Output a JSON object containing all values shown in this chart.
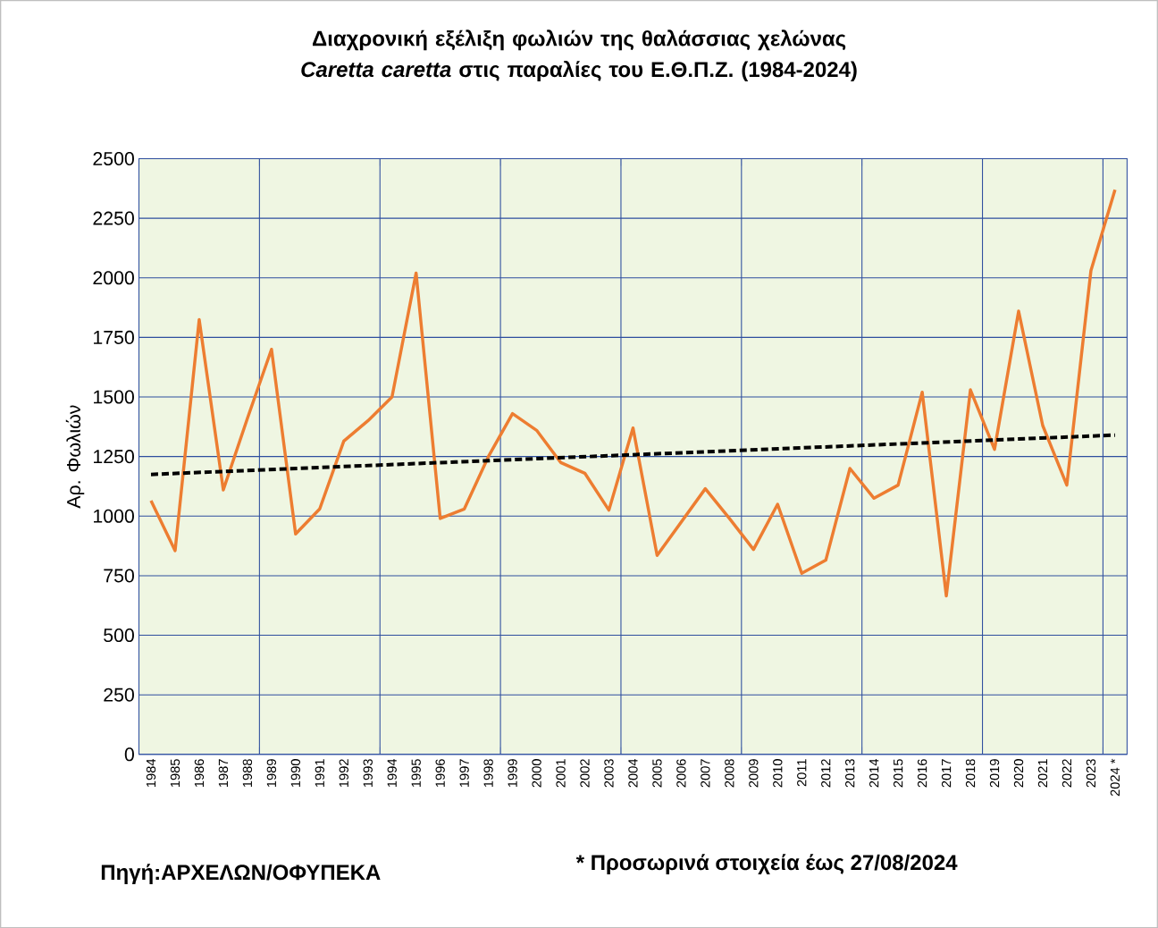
{
  "chart_data": {
    "type": "line",
    "title": "Διαχρονική εξέλιξη φωλιών της θαλάσσιας χελώνας *Caretta caretta* στις παραλίες του Ε.Θ.Π.Ζ. (1984-2024)",
    "ylabel": "Αρ.  Φωλιών",
    "annotations": [
      "Πηγή:ΑΡΧΕΛΩΝ/ΟΦΥΠΕΚΑ",
      "* Προσωρινά στοιχεία έως 27/08/2024"
    ],
    "x": [
      1984,
      1985,
      1986,
      1987,
      1988,
      1989,
      1990,
      1991,
      1992,
      1993,
      1994,
      1995,
      1996,
      1997,
      1998,
      1999,
      2000,
      2001,
      2002,
      2003,
      2004,
      2005,
      2006,
      2007,
      2008,
      2009,
      2010,
      2011,
      2012,
      2013,
      2014,
      2015,
      2016,
      2017,
      2018,
      2019,
      2020,
      2021,
      2022,
      2023,
      2024
    ],
    "series": [
      {
        "color": "#ed7d31",
        "values": [
          1065,
          855,
          1825,
          1110,
          1410,
          1700,
          925,
          1030,
          1315,
          1400,
          1500,
          2020,
          990,
          1030,
          1250,
          1430,
          1360,
          1225,
          1180,
          1025,
          1370,
          835,
          975,
          1115,
          990,
          860,
          1050,
          760,
          815,
          1200,
          1075,
          1130,
          1520,
          665,
          1530,
          1280,
          1860,
          1380,
          1130,
          2030,
          2370
        ]
      },
      {
        "type": "line",
        "line_style": "dashed",
        "color": "#000000",
        "x": [
          1984,
          2024
        ],
        "values": [
          1175,
          1340
        ]
      }
    ],
    "xlim": [
      1983.5,
      2024.5
    ],
    "xticks": [
      1984,
      1985,
      1986,
      1987,
      1988,
      1989,
      1990,
      1991,
      1992,
      1993,
      1994,
      1995,
      1996,
      1997,
      1998,
      1999,
      2000,
      2001,
      2002,
      2003,
      2004,
      2005,
      2006,
      2007,
      2008,
      2009,
      2010,
      2011,
      2012,
      2013,
      2014,
      2015,
      2016,
      2017,
      2018,
      2019,
      2020,
      2021,
      2022,
      2023,
      {
        "value": 2024,
        "label": "2024 *"
      },
      {
        "value": 1988.5,
        "label": null
      },
      {
        "value": 1993.5,
        "label": null
      },
      {
        "value": 1998.5,
        "label": null
      },
      {
        "value": 2003.5,
        "label": null
      },
      {
        "value": 2008.5,
        "label": null
      },
      {
        "value": 2013.5,
        "label": null
      },
      {
        "value": 2018.5,
        "label": null
      },
      {
        "value": 2023.5,
        "label": null
      }
    ],
    "ylim": [
      0,
      2500
    ],
    "yticks": [
      0,
      250,
      500,
      750,
      1000,
      1250,
      1500,
      1750,
      2000,
      2250,
      2500
    ],
    "grid": true
  }
}
